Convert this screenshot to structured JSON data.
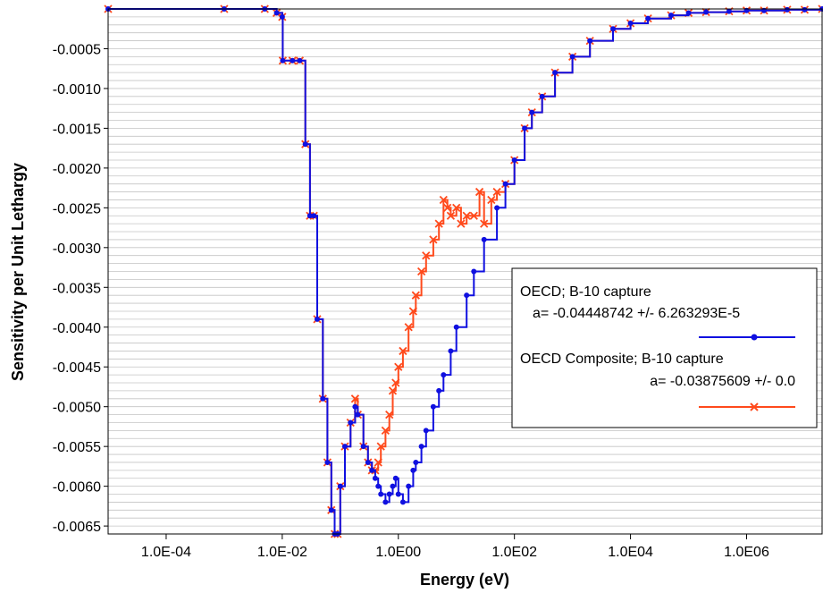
{
  "chart_data": {
    "type": "line",
    "xlabel": "Energy (eV)",
    "ylabel": "Sensitivity per Unit Lethargy",
    "xscale": "log",
    "xlim": [
      1e-05,
      20000000
    ],
    "ylim": [
      -0.0066,
      0.0
    ],
    "grid": "horizontal",
    "legend_position": "right",
    "x_ticks": [
      {
        "value": 0.0001,
        "label": "1.0E-04"
      },
      {
        "value": 0.01,
        "label": "1.0E-02"
      },
      {
        "value": 1,
        "label": "1.0E00"
      },
      {
        "value": 100,
        "label": "1.0E02"
      },
      {
        "value": 10000,
        "label": "1.0E04"
      },
      {
        "value": 1000000,
        "label": "1.0E06"
      }
    ],
    "y_ticks": [
      {
        "value": -0.0005,
        "label": "-0.0005"
      },
      {
        "value": -0.001,
        "label": "-0.0010"
      },
      {
        "value": -0.0015,
        "label": "-0.0015"
      },
      {
        "value": -0.002,
        "label": "-0.0020"
      },
      {
        "value": -0.0025,
        "label": "-0.0025"
      },
      {
        "value": -0.003,
        "label": "-0.0030"
      },
      {
        "value": -0.0035,
        "label": "-0.0035"
      },
      {
        "value": -0.004,
        "label": "-0.0040"
      },
      {
        "value": -0.0045,
        "label": "-0.0045"
      },
      {
        "value": -0.005,
        "label": "-0.0050"
      },
      {
        "value": -0.0055,
        "label": "-0.0055"
      },
      {
        "value": -0.006,
        "label": "-0.0060"
      },
      {
        "value": -0.0065,
        "label": "-0.0065"
      }
    ],
    "series": [
      {
        "name": "OECD;  B-10 capture",
        "stat": "a= -0.04448742 +/- 6.263293E-5",
        "color": "#1010e0",
        "marker": "dot",
        "x": [
          1e-05,
          0.001,
          0.005,
          0.008,
          0.01,
          0.0102,
          0.015,
          0.02,
          0.025,
          0.03,
          0.035,
          0.04,
          0.05,
          0.06,
          0.07,
          0.08,
          0.09,
          0.1,
          0.12,
          0.15,
          0.18,
          0.2,
          0.25,
          0.3,
          0.35,
          0.4,
          0.45,
          0.5,
          0.6,
          0.7,
          0.8,
          0.9,
          1.0,
          1.2,
          1.5,
          1.8,
          2.0,
          2.5,
          3.0,
          4.0,
          5.0,
          6.0,
          8.0,
          10.0,
          15.0,
          20.0,
          30.0,
          50.0,
          70.0,
          100.0,
          150.0,
          200.0,
          300.0,
          500.0,
          1000.0,
          2000.0,
          5000.0,
          10000.0,
          20000.0,
          50000.0,
          100000.0,
          200000.0,
          500000.0,
          1000000.0,
          2000000.0,
          5000000.0,
          10000000.0,
          20000000.0
        ],
        "y": [
          0.0,
          0.0,
          0.0,
          -5e-05,
          -0.0001,
          -0.00065,
          -0.00065,
          -0.00065,
          -0.0017,
          -0.0026,
          -0.0026,
          -0.0039,
          -0.0049,
          -0.0057,
          -0.0063,
          -0.0066,
          -0.0066,
          -0.006,
          -0.0055,
          -0.0052,
          -0.005,
          -0.0051,
          -0.0055,
          -0.0057,
          -0.0058,
          -0.0059,
          -0.006,
          -0.0061,
          -0.0062,
          -0.0061,
          -0.006,
          -0.0059,
          -0.0061,
          -0.0062,
          -0.006,
          -0.0058,
          -0.0057,
          -0.0055,
          -0.0053,
          -0.005,
          -0.0048,
          -0.0046,
          -0.0043,
          -0.004,
          -0.0036,
          -0.0033,
          -0.0029,
          -0.0025,
          -0.0022,
          -0.0019,
          -0.0015,
          -0.0013,
          -0.0011,
          -0.0008,
          -0.0006,
          -0.0004,
          -0.00025,
          -0.00018,
          -0.00012,
          -8e-05,
          -5e-05,
          -4e-05,
          -3e-05,
          -2e-05,
          -2e-05,
          -1e-05,
          -1e-05,
          0.0
        ]
      },
      {
        "name": "OECD Composite;  B-10 capture",
        "stat": "a= -0.03875609 +/- 0.0",
        "color": "#ff4a1c",
        "marker": "x",
        "x": [
          1e-05,
          0.001,
          0.005,
          0.008,
          0.01,
          0.0102,
          0.015,
          0.02,
          0.025,
          0.03,
          0.035,
          0.04,
          0.05,
          0.06,
          0.07,
          0.08,
          0.09,
          0.1,
          0.12,
          0.15,
          0.18,
          0.2,
          0.25,
          0.3,
          0.35,
          0.4,
          0.45,
          0.5,
          0.6,
          0.7,
          0.8,
          0.9,
          1.0,
          1.2,
          1.5,
          1.8,
          2.0,
          2.5,
          3.0,
          4.0,
          5.0,
          6.0,
          7.0,
          8.0,
          10.0,
          12.0,
          15.0,
          20.0,
          25.0,
          30.0,
          40.0,
          50.0,
          70.0,
          100.0,
          150.0,
          200.0,
          300.0,
          500.0,
          1000.0,
          2000.0,
          5000.0,
          10000.0,
          20000.0,
          50000.0,
          100000.0,
          200000.0,
          500000.0,
          1000000.0,
          2000000.0,
          5000000.0,
          10000000.0,
          20000000.0
        ],
        "y": [
          0.0,
          0.0,
          0.0,
          -5e-05,
          -0.0001,
          -0.00065,
          -0.00065,
          -0.00065,
          -0.0017,
          -0.0026,
          -0.0026,
          -0.0039,
          -0.0049,
          -0.0057,
          -0.0063,
          -0.0066,
          -0.0066,
          -0.006,
          -0.0055,
          -0.0052,
          -0.0049,
          -0.0051,
          -0.0055,
          -0.0057,
          -0.0058,
          -0.0058,
          -0.0057,
          -0.0055,
          -0.0053,
          -0.0051,
          -0.0048,
          -0.0047,
          -0.0045,
          -0.0043,
          -0.004,
          -0.0038,
          -0.0036,
          -0.0033,
          -0.0031,
          -0.0029,
          -0.0027,
          -0.0024,
          -0.0025,
          -0.0026,
          -0.0025,
          -0.0027,
          -0.0026,
          -0.0026,
          -0.0023,
          -0.0027,
          -0.0024,
          -0.0023,
          -0.0022,
          -0.0019,
          -0.0015,
          -0.0013,
          -0.0011,
          -0.0008,
          -0.0006,
          -0.0004,
          -0.00025,
          -0.00018,
          -0.00012,
          -8e-05,
          -5e-05,
          -4e-05,
          -3e-05,
          -2e-05,
          -2e-05,
          -1e-05,
          -1e-05,
          0.0
        ]
      }
    ]
  }
}
